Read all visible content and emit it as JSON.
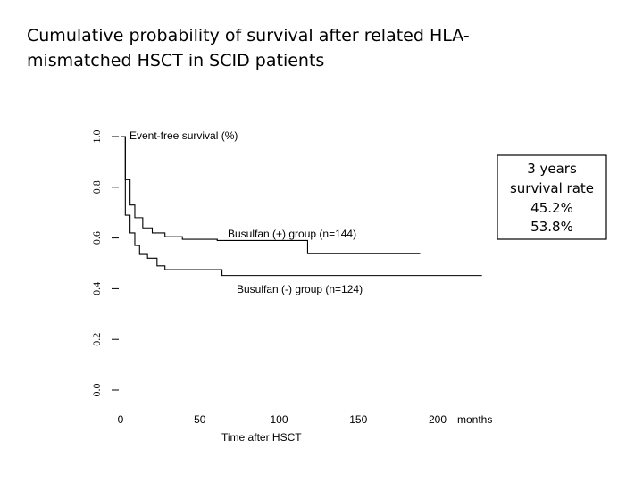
{
  "chart_data": {
    "type": "step",
    "title": "Cumulative probability of survival after related HLA-mismatched HSCT in SCID patients",
    "y_label": "Event-free survival (%)",
    "x_label": "Time after HSCT",
    "x_unit": "months",
    "xlim": [
      0,
      240
    ],
    "ylim": [
      0,
      1
    ],
    "xticks": [
      0,
      50,
      100,
      150,
      200
    ],
    "yticks": [
      {
        "value": 0,
        "label": "0.0"
      },
      0.2,
      0.4,
      0.6,
      0.8,
      {
        "value": 1,
        "label": "1.0"
      }
    ],
    "series": [
      {
        "name": "Busulfan (+) group  (n=144)",
        "color": "#000000",
        "x": [
          0,
          3,
          6,
          9,
          14,
          20,
          28,
          39,
          61,
          118,
          189
        ],
        "values": [
          1.0,
          0.83,
          0.73,
          0.68,
          0.64,
          0.62,
          0.605,
          0.595,
          0.59,
          0.538,
          0.538
        ]
      },
      {
        "name": "Busulfan (-) group  (n=124)",
        "color": "#000000",
        "x": [
          0,
          3,
          6,
          9,
          12,
          17,
          23,
          28,
          64,
          228
        ],
        "values": [
          1.0,
          0.69,
          0.62,
          0.57,
          0.535,
          0.52,
          0.49,
          0.475,
          0.452,
          0.452
        ]
      }
    ],
    "annotations": [
      "3 years",
      "survival rate",
      "45.2%",
      "53.8%"
    ]
  }
}
